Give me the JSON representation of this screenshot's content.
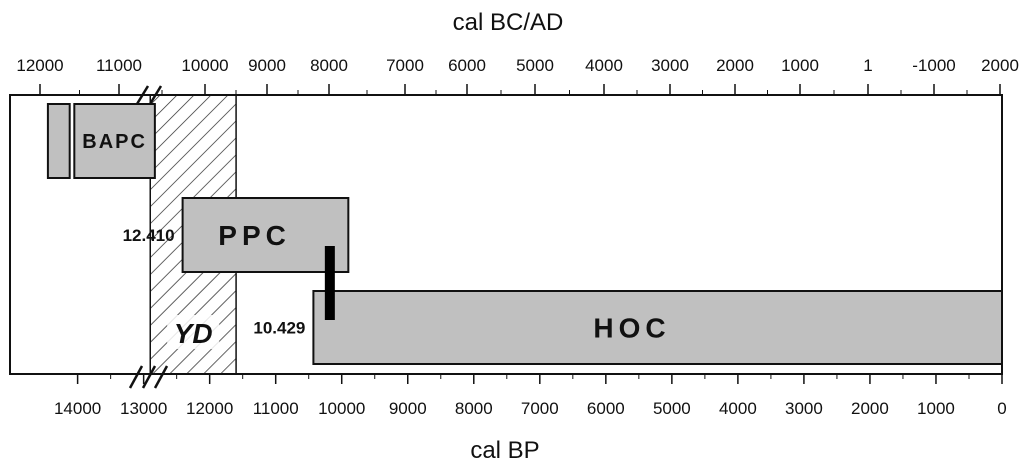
{
  "chart_data": {
    "type": "bar",
    "top_axis": {
      "label": "cal BC/AD",
      "ticks": [
        {
          "value": 12000,
          "label": "12000"
        },
        {
          "value": 11000,
          "label": "11000"
        },
        {
          "value": 10000,
          "label": "10000"
        },
        {
          "value": 9000,
          "label": "9000"
        },
        {
          "value": 8000,
          "label": "8000"
        },
        {
          "value": 7000,
          "label": "7000"
        },
        {
          "value": 6000,
          "label": "6000"
        },
        {
          "value": 5000,
          "label": "5000"
        },
        {
          "value": 4000,
          "label": "4000"
        },
        {
          "value": 3000,
          "label": "3000"
        },
        {
          "value": 2000,
          "label": "2000"
        },
        {
          "value": 1000,
          "label": "1000"
        },
        {
          "value": 1,
          "label": "1"
        },
        {
          "value": -1000,
          "label": "-1000"
        },
        {
          "value": -2000,
          "label": "2000"
        }
      ]
    },
    "bottom_axis": {
      "label": "cal BP",
      "range": [
        14600,
        0
      ],
      "ticks": [
        {
          "value": 14000,
          "label": "14000"
        },
        {
          "value": 13000,
          "label": "13000"
        },
        {
          "value": 12000,
          "label": "12000"
        },
        {
          "value": 11000,
          "label": "11000"
        },
        {
          "value": 10000,
          "label": "10000"
        },
        {
          "value": 9000,
          "label": "9000"
        },
        {
          "value": 8000,
          "label": "8000"
        },
        {
          "value": 7000,
          "label": "7000"
        },
        {
          "value": 6000,
          "label": "6000"
        },
        {
          "value": 5000,
          "label": "5000"
        },
        {
          "value": 4000,
          "label": "4000"
        },
        {
          "value": 3000,
          "label": "3000"
        },
        {
          "value": 2000,
          "label": "2000"
        },
        {
          "value": 1000,
          "label": "1000"
        },
        {
          "value": 0,
          "label": "0"
        }
      ]
    },
    "periods": [
      {
        "name": "",
        "start_bp": 14450,
        "end_bp": 14120,
        "row": "top"
      },
      {
        "name": "BAPC",
        "start_bp": 14050,
        "end_bp": 12830,
        "row": "top"
      },
      {
        "name": "PPC",
        "start_bp": 12410,
        "end_bp": 9900,
        "row": "middle"
      },
      {
        "name": "HOC",
        "start_bp": 10429,
        "end_bp": 0,
        "row": "bottom"
      }
    ],
    "event_band": {
      "name": "YD",
      "start_bp": 12900,
      "end_bp": 11600,
      "pattern": "hatched"
    },
    "marker": {
      "at_bp": 10180
    },
    "annotations": [
      {
        "text": "12.410",
        "at_bp": 12410,
        "row": "middle"
      },
      {
        "text": "10.429",
        "at_bp": 10429,
        "row": "bottom"
      }
    ],
    "colors": {
      "box_fill": "#c0c0c0",
      "outline": "#111111",
      "marker": "#000000"
    }
  }
}
